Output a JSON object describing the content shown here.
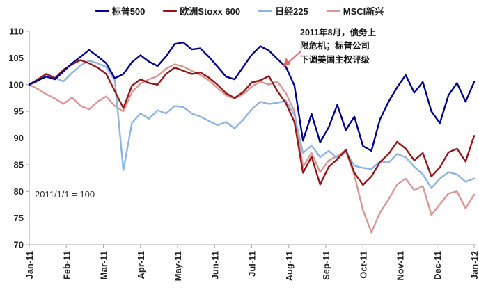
{
  "annotation": {
    "lines": [
      "2011年8月，债务上",
      "限危机；标普公司",
      "下调美国主权评级"
    ],
    "arrow_color": "#E06666"
  },
  "baseline_note": "2011/1/1 = 100",
  "colors": {
    "axis": "#A6A6A6",
    "tick_label": "#262626",
    "sp500": "#00008B",
    "stoxx600": "#941616",
    "nikkei225": "#8DB4E2",
    "msci_em": "#D99694"
  },
  "chart_data": {
    "type": "line",
    "title": "",
    "note": "2011/1/1 = 100",
    "x_tick_labels": [
      "Jan-11",
      "Feb-11",
      "Mar-11",
      "Apr-11",
      "May-11",
      "Jun-11",
      "Jul-11",
      "Aug-11",
      "Sep-11",
      "Oct-11",
      "Nov-11",
      "Dec-11",
      "Jan-12"
    ],
    "y_ticks": [
      70,
      75,
      80,
      85,
      90,
      95,
      100,
      105,
      110
    ],
    "ylim": [
      70,
      110
    ],
    "grid": false,
    "legend_position": "top",
    "x_resolution": "weekly",
    "series": [
      {
        "name": "标普500",
        "color": "#00008B",
        "values": [
          100,
          100.8,
          101.5,
          101.0,
          102.5,
          104.0,
          105.2,
          106.5,
          105.3,
          104.0,
          101.2,
          102.0,
          104.2,
          105.5,
          104.3,
          103.5,
          105.3,
          107.6,
          107.9,
          106.6,
          106.8,
          105.2,
          103.4,
          101.5,
          101.0,
          103.3,
          105.6,
          107.2,
          106.4,
          104.8,
          103.3,
          99.8,
          89.5,
          94.5,
          89.2,
          92.0,
          96.2,
          91.5,
          94.0,
          88.5,
          87.6,
          93.5,
          96.8,
          99.5,
          101.8,
          98.5,
          100.5,
          95.0,
          92.8,
          98.0,
          100.3,
          96.8,
          100.5
        ]
      },
      {
        "name": "欧洲Stoxx 600",
        "color": "#941616",
        "values": [
          100,
          101.0,
          102.0,
          101.2,
          102.8,
          103.8,
          104.6,
          104.0,
          103.2,
          102.0,
          98.8,
          95.6,
          99.8,
          101.0,
          100.3,
          100.0,
          102.0,
          103.2,
          102.6,
          102.0,
          102.3,
          101.3,
          100.0,
          98.4,
          97.5,
          98.6,
          100.4,
          100.8,
          101.6,
          98.8,
          96.5,
          93.0,
          83.5,
          86.5,
          81.3,
          84.6,
          86.0,
          87.8,
          83.5,
          81.2,
          82.8,
          85.5,
          87.0,
          89.3,
          88.0,
          85.8,
          87.2,
          82.8,
          84.5,
          87.3,
          88.0,
          85.6,
          90.4
        ]
      },
      {
        "name": "日经225",
        "color": "#8DB4E2",
        "values": [
          100,
          100.6,
          102.0,
          101.3,
          100.6,
          102.2,
          103.6,
          104.5,
          104.0,
          103.3,
          100.8,
          84.0,
          92.8,
          94.6,
          93.6,
          95.2,
          94.6,
          96.0,
          95.8,
          94.6,
          94.0,
          93.2,
          92.4,
          93.0,
          91.8,
          93.4,
          95.4,
          96.8,
          96.4,
          96.6,
          97.0,
          94.3,
          87.2,
          88.6,
          86.4,
          87.6,
          86.2,
          87.4,
          84.8,
          84.4,
          84.2,
          85.6,
          85.4,
          87.0,
          86.4,
          84.6,
          83.2,
          80.6,
          82.4,
          83.6,
          83.2,
          81.8,
          82.4
        ]
      },
      {
        "name": "MSCI新兴",
        "color": "#D99694",
        "values": [
          100,
          99.2,
          98.2,
          97.4,
          96.4,
          97.6,
          96.0,
          95.4,
          96.8,
          97.8,
          96.0,
          95.0,
          98.6,
          100.2,
          101.0,
          101.6,
          103.0,
          103.8,
          103.4,
          102.6,
          101.8,
          100.8,
          99.4,
          98.0,
          97.4,
          98.2,
          99.6,
          100.6,
          100.0,
          100.6,
          98.4,
          95.0,
          84.6,
          87.2,
          83.6,
          85.8,
          86.6,
          87.6,
          83.0,
          76.5,
          72.3,
          76.0,
          78.5,
          81.3,
          82.4,
          80.2,
          81.0,
          75.6,
          77.6,
          79.6,
          80.0,
          76.8,
          79.4
        ]
      }
    ]
  }
}
